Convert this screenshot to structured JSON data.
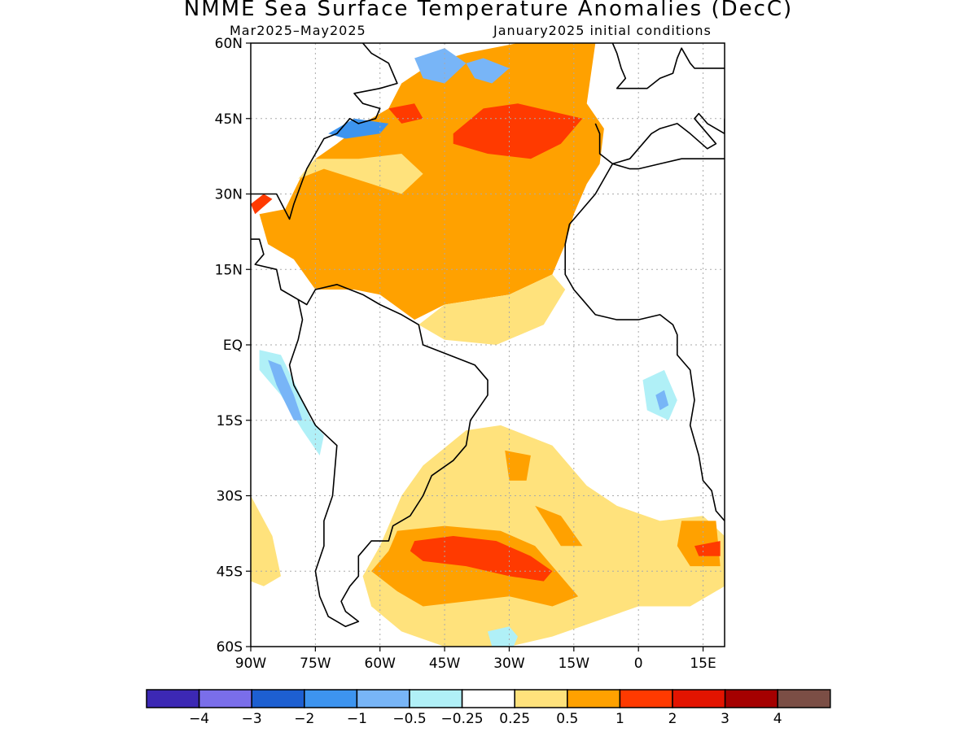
{
  "title": "NMME Sea Surface Temperature Anomalies (DecC)",
  "subtitle_left": "Mar2025–May2025",
  "subtitle_right": "January2025 initial conditions",
  "map": {
    "lon_range": [
      -90,
      20
    ],
    "lat_range": [
      -60,
      60
    ],
    "lat_ticks": [
      {
        "value": 60,
        "label": "60N"
      },
      {
        "value": 45,
        "label": "45N"
      },
      {
        "value": 30,
        "label": "30N"
      },
      {
        "value": 15,
        "label": "15N"
      },
      {
        "value": 0,
        "label": "EQ"
      },
      {
        "value": -15,
        "label": "15S"
      },
      {
        "value": -30,
        "label": "30S"
      },
      {
        "value": -45,
        "label": "45S"
      },
      {
        "value": -60,
        "label": "60S"
      }
    ],
    "lon_ticks": [
      {
        "value": -90,
        "label": "90W"
      },
      {
        "value": -75,
        "label": "75W"
      },
      {
        "value": -60,
        "label": "60W"
      },
      {
        "value": -45,
        "label": "45W"
      },
      {
        "value": -30,
        "label": "30W"
      },
      {
        "value": -15,
        "label": "15W"
      },
      {
        "value": 0,
        "label": "0"
      },
      {
        "value": 15,
        "label": "15E"
      }
    ],
    "regions": [
      {
        "level": "0.5",
        "pts": [
          [
            -82,
            27
          ],
          [
            -78,
            34
          ],
          [
            -75,
            37
          ],
          [
            -70,
            40
          ],
          [
            -64,
            44
          ],
          [
            -58,
            47
          ],
          [
            -55,
            52
          ],
          [
            -48,
            56
          ],
          [
            -40,
            58
          ],
          [
            -28,
            60
          ],
          [
            -10,
            60
          ],
          [
            -12,
            48
          ],
          [
            -8,
            43
          ],
          [
            -9,
            36
          ],
          [
            -12,
            32
          ],
          [
            -15,
            26
          ],
          [
            -17,
            20
          ],
          [
            -20,
            14
          ],
          [
            -30,
            10
          ],
          [
            -45,
            8
          ],
          [
            -52,
            5
          ],
          [
            -60,
            10
          ],
          [
            -66,
            11
          ],
          [
            -75,
            11
          ],
          [
            -80,
            17
          ],
          [
            -86,
            20
          ],
          [
            -88,
            26
          ]
        ]
      },
      {
        "level": "0.25",
        "pts": [
          [
            -20,
            14
          ],
          [
            -17,
            11
          ],
          [
            -22,
            4
          ],
          [
            -33,
            0
          ],
          [
            -45,
            1
          ],
          [
            -51,
            4
          ],
          [
            -45,
            8
          ],
          [
            -30,
            10
          ]
        ]
      },
      {
        "level": "0.25",
        "pts": [
          [
            -79,
            33
          ],
          [
            -73,
            35
          ],
          [
            -62,
            32
          ],
          [
            -55,
            30
          ],
          [
            -50,
            34
          ],
          [
            -55,
            38
          ],
          [
            -65,
            37
          ],
          [
            -75,
            37
          ]
        ]
      },
      {
        "level": "1",
        "pts": [
          [
            -43,
            42
          ],
          [
            -36,
            47
          ],
          [
            -28,
            48
          ],
          [
            -18,
            46
          ],
          [
            -13,
            45
          ],
          [
            -18,
            40
          ],
          [
            -25,
            37
          ],
          [
            -35,
            38
          ],
          [
            -43,
            40
          ]
        ]
      },
      {
        "level": "1",
        "pts": [
          [
            -58,
            47
          ],
          [
            -52,
            48
          ],
          [
            -50,
            45
          ],
          [
            -55,
            44
          ]
        ]
      },
      {
        "level": "1",
        "pts": [
          [
            -90,
            28
          ],
          [
            -87,
            30
          ],
          [
            -85,
            29
          ],
          [
            -89,
            26
          ]
        ]
      },
      {
        "level": "-1",
        "pts": [
          [
            -72,
            42
          ],
          [
            -66,
            45
          ],
          [
            -58,
            44
          ],
          [
            -60,
            42
          ],
          [
            -68,
            41
          ]
        ]
      },
      {
        "level": "-0.5",
        "pts": [
          [
            -52,
            57
          ],
          [
            -45,
            59
          ],
          [
            -40,
            56
          ],
          [
            -45,
            52
          ],
          [
            -50,
            53
          ]
        ]
      },
      {
        "level": "-0.5",
        "pts": [
          [
            -40,
            56
          ],
          [
            -36,
            57
          ],
          [
            -30,
            55
          ],
          [
            -34,
            52
          ],
          [
            -38,
            53
          ]
        ]
      },
      {
        "level": "0.25",
        "pts": [
          [
            -55,
            -30
          ],
          [
            -50,
            -24
          ],
          [
            -40,
            -17
          ],
          [
            -32,
            -16
          ],
          [
            -20,
            -20
          ],
          [
            -12,
            -28
          ],
          [
            -5,
            -32
          ],
          [
            5,
            -35
          ],
          [
            15,
            -34
          ],
          [
            20,
            -38
          ],
          [
            20,
            -48
          ],
          [
            12,
            -52
          ],
          [
            0,
            -52
          ],
          [
            -10,
            -55
          ],
          [
            -20,
            -58
          ],
          [
            -30,
            -60
          ],
          [
            -45,
            -60
          ],
          [
            -55,
            -57
          ],
          [
            -62,
            -52
          ],
          [
            -64,
            -46
          ],
          [
            -60,
            -40
          ]
        ]
      },
      {
        "level": "0.5",
        "pts": [
          [
            -56,
            -37
          ],
          [
            -45,
            -36
          ],
          [
            -32,
            -37
          ],
          [
            -24,
            -40
          ],
          [
            -18,
            -46
          ],
          [
            -14,
            -50
          ],
          [
            -20,
            -52
          ],
          [
            -30,
            -50
          ],
          [
            -40,
            -51
          ],
          [
            -50,
            -52
          ],
          [
            -56,
            -49
          ],
          [
            -62,
            -45
          ],
          [
            -58,
            -41
          ]
        ]
      },
      {
        "level": "1",
        "pts": [
          [
            -52,
            -39
          ],
          [
            -43,
            -38
          ],
          [
            -33,
            -39
          ],
          [
            -25,
            -42
          ],
          [
            -20,
            -45
          ],
          [
            -22,
            -47
          ],
          [
            -30,
            -46
          ],
          [
            -40,
            -44
          ],
          [
            -50,
            -43
          ],
          [
            -53,
            -41
          ]
        ]
      },
      {
        "level": "0.5",
        "pts": [
          [
            -31,
            -21
          ],
          [
            -25,
            -22
          ],
          [
            -26,
            -27
          ],
          [
            -30,
            -27
          ]
        ]
      },
      {
        "level": "0.5",
        "pts": [
          [
            -24,
            -32
          ],
          [
            -18,
            -34
          ],
          [
            -13,
            -40
          ],
          [
            -18,
            -40
          ]
        ]
      },
      {
        "level": "0.5",
        "pts": [
          [
            10,
            -35
          ],
          [
            18,
            -35
          ],
          [
            19,
            -44
          ],
          [
            12,
            -44
          ],
          [
            9,
            -40
          ]
        ]
      },
      {
        "level": "1",
        "pts": [
          [
            13,
            -40
          ],
          [
            19,
            -39
          ],
          [
            19,
            -42
          ],
          [
            14,
            -42
          ]
        ]
      },
      {
        "level": "0.25",
        "pts": [
          [
            -90,
            -30
          ],
          [
            -85,
            -38
          ],
          [
            -83,
            -46
          ],
          [
            -87,
            -48
          ],
          [
            -90,
            -47
          ]
        ]
      },
      {
        "level": "-0.25",
        "pts": [
          [
            -88,
            -1
          ],
          [
            -83,
            -2
          ],
          [
            -79,
            -9
          ],
          [
            -76,
            -15
          ],
          [
            -73,
            -18
          ],
          [
            -74,
            -22
          ],
          [
            -78,
            -17
          ],
          [
            -83,
            -10
          ],
          [
            -88,
            -5
          ]
        ]
      },
      {
        "level": "-0.5",
        "pts": [
          [
            -86,
            -3
          ],
          [
            -83,
            -4
          ],
          [
            -80,
            -10
          ],
          [
            -78,
            -15
          ],
          [
            -80,
            -15
          ],
          [
            -84,
            -8
          ]
        ]
      },
      {
        "level": "-0.25",
        "pts": [
          [
            1,
            -7
          ],
          [
            6,
            -5
          ],
          [
            9,
            -11
          ],
          [
            7,
            -15
          ],
          [
            2,
            -13
          ]
        ]
      },
      {
        "level": "-0.5",
        "pts": [
          [
            4,
            -10
          ],
          [
            6,
            -9
          ],
          [
            7,
            -12
          ],
          [
            5,
            -13
          ]
        ]
      },
      {
        "level": "-0.25",
        "pts": [
          [
            -35,
            -57
          ],
          [
            -30,
            -56
          ],
          [
            -28,
            -58
          ],
          [
            -29,
            -60
          ],
          [
            -34,
            -60
          ]
        ]
      }
    ],
    "coast": [
      [
        [
          -90,
          30
        ],
        [
          -84,
          30
        ],
        [
          -81,
          25
        ],
        [
          -80,
          28
        ],
        [
          -77,
          35
        ],
        [
          -75,
          38
        ],
        [
          -73,
          41
        ],
        [
          -70,
          42
        ],
        [
          -67,
          45
        ],
        [
          -65,
          44
        ],
        [
          -61,
          45
        ],
        [
          -60,
          47
        ],
        [
          -64,
          48
        ],
        [
          -66,
          50
        ],
        [
          -60,
          51
        ],
        [
          -56,
          52
        ],
        [
          -58,
          56
        ],
        [
          -62,
          58
        ],
        [
          -64,
          60
        ]
      ],
      [
        [
          -90,
          21
        ],
        [
          -88,
          21
        ],
        [
          -87,
          18
        ],
        [
          -89,
          16
        ],
        [
          -84,
          15
        ],
        [
          -83,
          11
        ],
        [
          -79,
          9
        ],
        [
          -77,
          8
        ],
        [
          -75,
          11
        ],
        [
          -70,
          12
        ],
        [
          -64,
          10
        ],
        [
          -60,
          8
        ],
        [
          -55,
          6
        ],
        [
          -51,
          4
        ],
        [
          -50,
          0
        ],
        [
          -44,
          -2
        ],
        [
          -38,
          -4
        ],
        [
          -35,
          -7
        ],
        [
          -35,
          -10
        ],
        [
          -39,
          -15
        ],
        [
          -40,
          -20
        ],
        [
          -43,
          -23
        ],
        [
          -48,
          -26
        ],
        [
          -50,
          -30
        ],
        [
          -53,
          -34
        ],
        [
          -57,
          -36
        ],
        [
          -58,
          -39
        ],
        [
          -62,
          -39
        ],
        [
          -65,
          -42
        ],
        [
          -65,
          -46
        ],
        [
          -67,
          -48
        ],
        [
          -69,
          -51
        ],
        [
          -68,
          -53
        ],
        [
          -65,
          -55
        ],
        [
          -68,
          -56
        ],
        [
          -72,
          -54
        ],
        [
          -74,
          -50
        ],
        [
          -75,
          -45
        ],
        [
          -73,
          -40
        ],
        [
          -73,
          -35
        ],
        [
          -71,
          -30
        ],
        [
          -70,
          -20
        ],
        [
          -75,
          -16
        ],
        [
          -80,
          -8
        ],
        [
          -81,
          -4
        ],
        [
          -79,
          1
        ],
        [
          -78,
          5
        ],
        [
          -79,
          9
        ]
      ],
      [
        [
          -6,
          60
        ],
        [
          -5,
          58
        ],
        [
          -4,
          55
        ],
        [
          -3,
          53
        ],
        [
          -5,
          51
        ],
        [
          0,
          51
        ],
        [
          2,
          51
        ],
        [
          5,
          53
        ],
        [
          8,
          54
        ],
        [
          9,
          57
        ],
        [
          10,
          59
        ],
        [
          12,
          56
        ],
        [
          13,
          55
        ],
        [
          20,
          55
        ]
      ],
      [
        [
          -10,
          44
        ],
        [
          -9,
          42
        ],
        [
          -9,
          38
        ],
        [
          -6,
          36
        ],
        [
          -2,
          37
        ],
        [
          0,
          39
        ],
        [
          3,
          42
        ],
        [
          5,
          43
        ],
        [
          9,
          44
        ],
        [
          12,
          42
        ],
        [
          16,
          39
        ],
        [
          18,
          40
        ],
        [
          16,
          42
        ],
        [
          13,
          45
        ],
        [
          14,
          46
        ],
        [
          16,
          44
        ],
        [
          20,
          42
        ],
        [
          20,
          45
        ]
      ],
      [
        [
          -6,
          36
        ],
        [
          -10,
          30
        ],
        [
          -13,
          27
        ],
        [
          -16,
          24
        ],
        [
          -17,
          20
        ],
        [
          -17,
          14
        ],
        [
          -15,
          11
        ],
        [
          -13,
          9
        ],
        [
          -10,
          6
        ],
        [
          -5,
          5
        ],
        [
          0,
          5
        ],
        [
          5,
          6
        ],
        [
          8,
          4
        ],
        [
          9,
          2
        ],
        [
          9,
          -2
        ],
        [
          12,
          -5
        ],
        [
          13,
          -11
        ],
        [
          12,
          -16
        ],
        [
          14,
          -22
        ],
        [
          15,
          -27
        ],
        [
          17,
          -29
        ],
        [
          18,
          -33
        ],
        [
          20,
          -35
        ]
      ],
      [
        [
          20,
          37
        ],
        [
          15,
          37
        ],
        [
          10,
          37
        ],
        [
          5,
          36
        ],
        [
          0,
          35
        ],
        [
          -2,
          35
        ],
        [
          -6,
          36
        ]
      ]
    ]
  },
  "colorbar": {
    "colors": [
      "#3c28b4",
      "#7a6eea",
      "#1d5fd1",
      "#3d94ef",
      "#78b5f7",
      "#b0f0f7",
      "#ffffff",
      "#ffe27c",
      "#ffa100",
      "#ff3a00",
      "#e31400",
      "#a50000",
      "#7b4e45"
    ],
    "labels": [
      "−4",
      "−3",
      "−2",
      "−1",
      "−0.5",
      "−0.25",
      "0.25",
      "0.5",
      "1",
      "2",
      "3",
      "4"
    ]
  },
  "level_colors": {
    "-1": "#3d94ef",
    "-0.5": "#78b5f7",
    "-0.25": "#b0f0f7",
    "0.25": "#ffe27c",
    "0.5": "#ffa100",
    "1": "#ff3a00",
    "2": "#e31400"
  }
}
